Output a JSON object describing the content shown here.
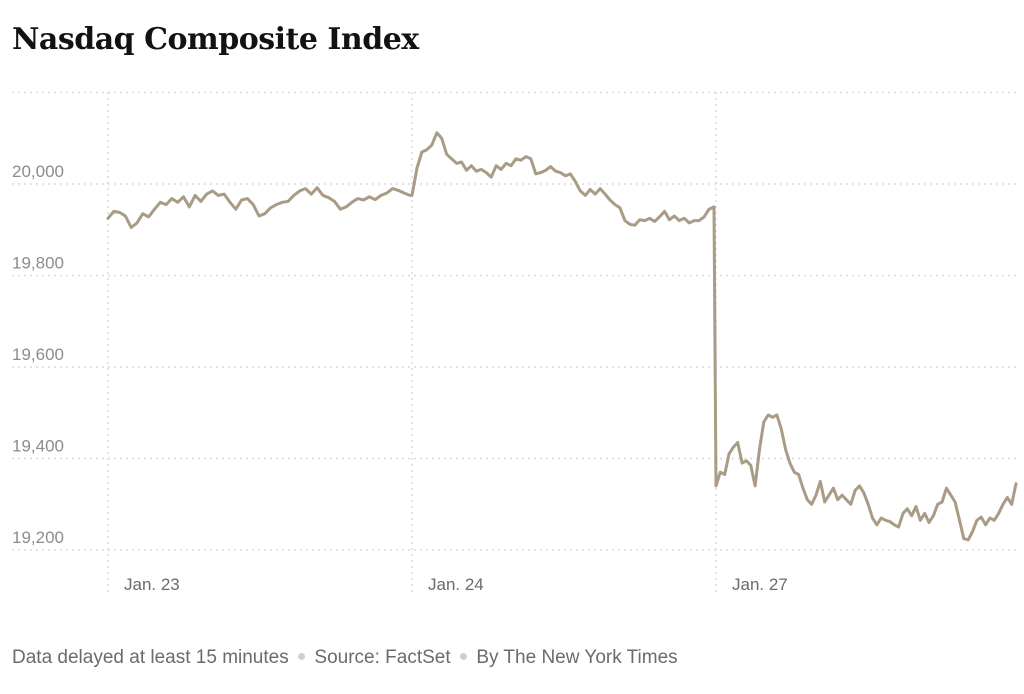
{
  "footer": {
    "delay_note": "Data delayed at least 15 minutes",
    "source": "Source: FactSet",
    "credit": "By The New York Times"
  },
  "colors": {
    "line": "#a99b86",
    "grid": "#d9d9d9",
    "tick_text": "#8c8c8c"
  },
  "chart_data": {
    "type": "line",
    "title": "Nasdaq Composite Index",
    "xlabel": "",
    "ylabel": "",
    "ylim": [
      19120,
      20200
    ],
    "yticks": [
      19200,
      19400,
      19600,
      19800,
      20000
    ],
    "ytick_labels": [
      "19,200",
      "19,400",
      "19,600",
      "19,800",
      "20,000"
    ],
    "xtick_labels": [
      "Jan. 23",
      "Jan. 24",
      "Jan. 27"
    ],
    "grid": true,
    "legend": "none",
    "sessions": [
      {
        "label": "Jan. 23",
        "values": [
          19925,
          19940,
          19938,
          19930,
          19905,
          19915,
          19935,
          19928,
          19945,
          19960,
          19955,
          19968,
          19960,
          19972,
          19950,
          19975,
          19962,
          19978,
          19985,
          19975,
          19978,
          19960,
          19945,
          19965,
          19968,
          19955,
          19930,
          19935,
          19948,
          19955,
          19960,
          19962,
          19975,
          19985,
          19990,
          19978,
          19992,
          19975,
          19970,
          19962,
          19945,
          19950,
          19960,
          19968,
          19965,
          19972,
          19966,
          19975,
          19980,
          19990,
          19986,
          19980,
          19975
        ]
      },
      {
        "label": "Jan. 24",
        "values": [
          19975,
          20035,
          20070,
          20075,
          20085,
          20112,
          20100,
          20065,
          20055,
          20045,
          20048,
          20030,
          20040,
          20028,
          20032,
          20025,
          20015,
          20040,
          20032,
          20045,
          20040,
          20055,
          20052,
          20060,
          20055,
          20022,
          20025,
          20030,
          20038,
          20028,
          20025,
          20018,
          20022,
          20005,
          19985,
          19975,
          19988,
          19978,
          19990,
          19978,
          19965,
          19955,
          19948,
          19920,
          19912,
          19910,
          19922,
          19920,
          19925,
          19918,
          19928,
          19940,
          19922,
          19930,
          19920,
          19925,
          19915,
          19920,
          19920,
          19928,
          19945,
          19950
        ]
      },
      {
        "label": "Jan. 27",
        "values": [
          19340,
          19370,
          19365,
          19410,
          19425,
          19435,
          19390,
          19395,
          19385,
          19340,
          19420,
          19480,
          19495,
          19490,
          19495,
          19465,
          19420,
          19390,
          19370,
          19365,
          19335,
          19310,
          19300,
          19320,
          19350,
          19305,
          19320,
          19335,
          19310,
          19320,
          19310,
          19300,
          19330,
          19340,
          19325,
          19300,
          19270,
          19255,
          19270,
          19265,
          19262,
          19255,
          19250,
          19280,
          19290,
          19275,
          19295,
          19265,
          19280,
          19260,
          19275,
          19300,
          19305,
          19335,
          19320,
          19305,
          19265,
          19225,
          19222,
          19240,
          19265,
          19272,
          19255,
          19270,
          19265,
          19280,
          19300,
          19315,
          19300,
          19345
        ]
      }
    ]
  }
}
